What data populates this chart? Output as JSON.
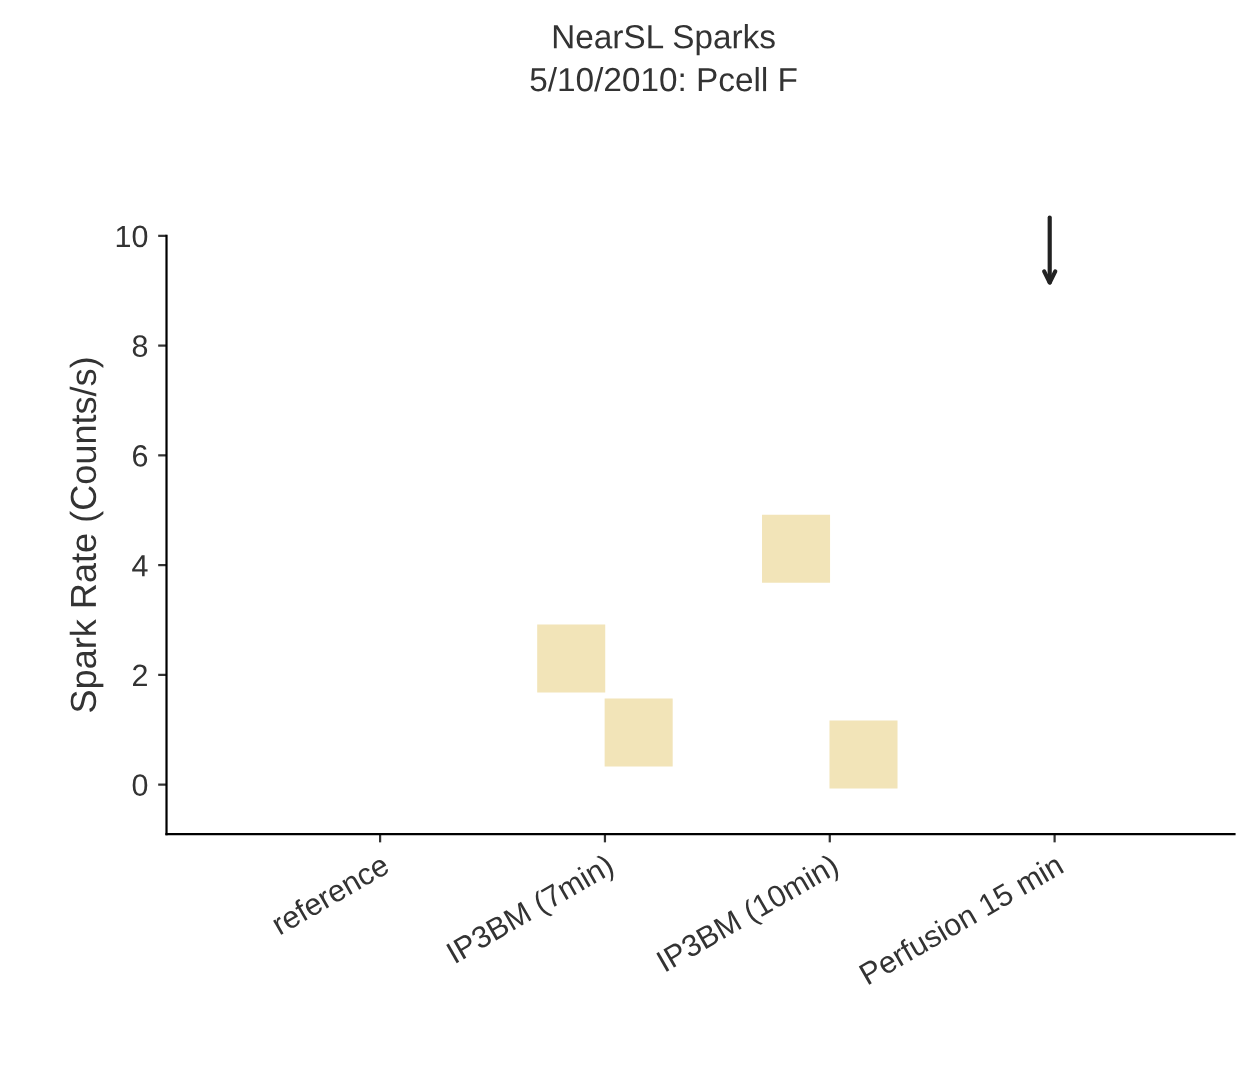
{
  "chart_data": {
    "type": "scatter",
    "title": "NearSL Sparks",
    "subtitle": "5/10/2010: Pcell F",
    "ylabel": "Spark Rate (Counts/s)",
    "categories": [
      "reference",
      "IP3BM (7min)",
      "IP3BM (10min)",
      "Perfusion 15 min"
    ],
    "series": [
      {
        "color": "#f2e4b8",
        "values": [
          null,
          2.3,
          4.3,
          null
        ]
      },
      {
        "color": "#f2e4b8",
        "values": [
          null,
          0.95,
          0.55,
          null
        ]
      }
    ],
    "marker": "square",
    "ylim": [
      -0.9,
      10
    ],
    "yticks": [
      0,
      2,
      4,
      6,
      8,
      10
    ],
    "grid": false,
    "legend": false
  }
}
